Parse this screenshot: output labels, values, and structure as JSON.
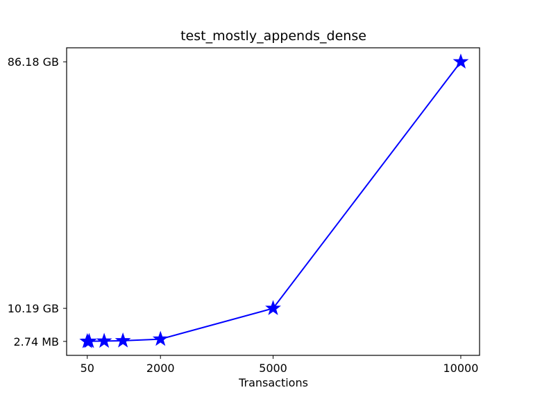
{
  "chart_data": {
    "type": "line",
    "title": "test_mostly_appends_dense",
    "xlabel": "Transactions",
    "ylabel": "",
    "x_ticks": [
      50,
      2000,
      5000,
      10000
    ],
    "y_ticks": [
      {
        "label": "2.74 MB",
        "value": 0.00274
      },
      {
        "label": "10.19 GB",
        "value": 10.19
      },
      {
        "label": "86.18 GB",
        "value": 86.18
      }
    ],
    "xlim": [
      -500,
      10500
    ],
    "ylim": [
      -4.3,
      90.5
    ],
    "y_unit": "GB",
    "grid": false,
    "legend": "none",
    "series": [
      {
        "color": "#0000ff",
        "marker": "star",
        "points": [
          {
            "x": 50,
            "y": 0.00274
          },
          {
            "x": 100,
            "y": 0.05
          },
          {
            "x": 500,
            "y": 0.1
          },
          {
            "x": 1000,
            "y": 0.2
          },
          {
            "x": 2000,
            "y": 0.7
          },
          {
            "x": 5000,
            "y": 10.19
          },
          {
            "x": 10000,
            "y": 86.18
          }
        ]
      }
    ]
  }
}
